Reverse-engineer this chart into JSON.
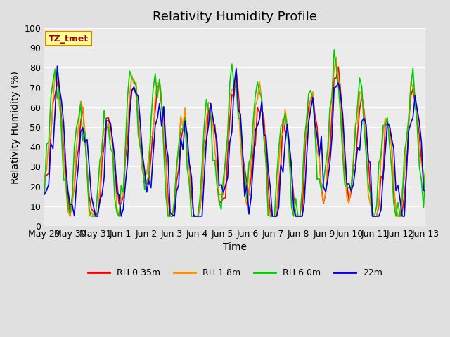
{
  "title": "Relativity Humidity Profile",
  "xlabel": "Time",
  "ylabel": "Relativity Humidity (%)",
  "annotation": "TZ_tmet",
  "ylim": [
    0,
    100
  ],
  "yticks": [
    0,
    10,
    20,
    30,
    40,
    50,
    60,
    70,
    80,
    90,
    100
  ],
  "x_tick_labels": [
    "May 29",
    "May 30",
    "May 31",
    "Jun 1",
    "Jun 2",
    "Jun 3",
    "Jun 4",
    "Jun 5",
    "Jun 6",
    "Jun 7",
    "Jun 8",
    "Jun 9",
    "Jun 10",
    "Jun 11",
    "Jun 12",
    "Jun 13"
  ],
  "series_labels": [
    "RH 0.35m",
    "RH 1.8m",
    "RH 6.0m",
    "22m"
  ],
  "series_colors": [
    "#ff0000",
    "#ff8c00",
    "#00cc00",
    "#0000dd"
  ],
  "background_color": "#e0e0e0",
  "plot_area_color": "#ebebeb",
  "annotation_bg": "#ffff99",
  "annotation_border": "#cc8800",
  "annotation_text_color": "#990000",
  "linewidth": 1.2,
  "title_fontsize": 13,
  "label_fontsize": 10,
  "tick_fontsize": 9,
  "legend_fontsize": 9,
  "n_days": 15,
  "n_per_day": 12
}
